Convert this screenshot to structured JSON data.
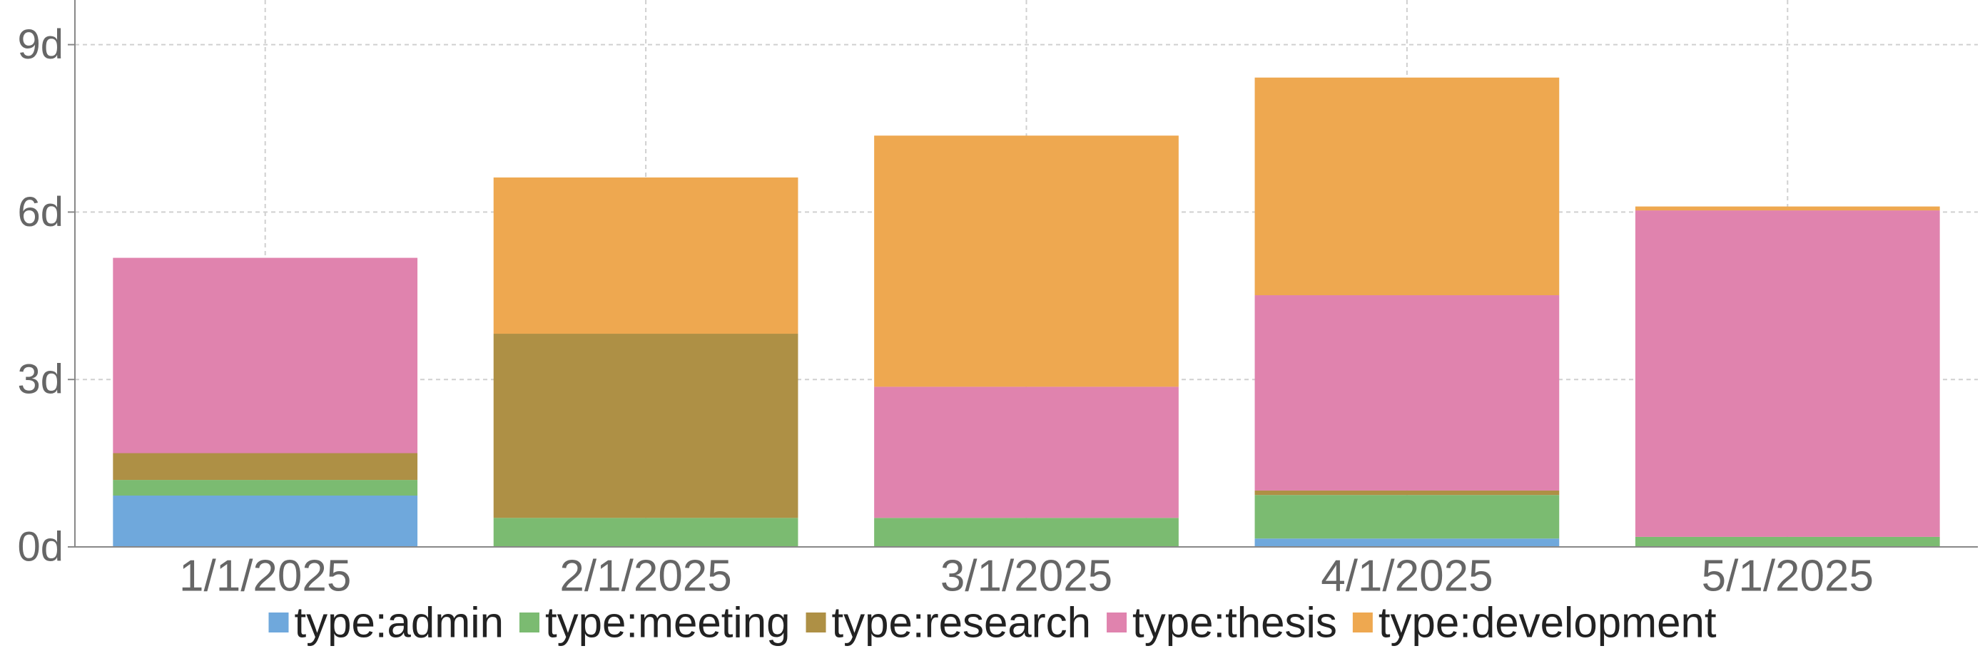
{
  "chart_data": {
    "type": "bar",
    "stacked": true,
    "title": "",
    "xlabel": "",
    "ylabel": "",
    "categories": [
      "1/1/2025",
      "2/1/2025",
      "3/1/2025",
      "4/1/2025",
      "5/1/2025"
    ],
    "y_unit_suffix": "d",
    "ylim": [
      0,
      9.8
    ],
    "yticks": [
      0,
      3,
      6,
      9
    ],
    "ytick_labels": [
      "0d",
      "3d",
      "6d",
      "9d"
    ],
    "grid": true,
    "legend_position": "bottom",
    "series": [
      {
        "name": "type:admin",
        "color": "#6fa8dc",
        "values": [
          0.92,
          0,
          0,
          0.15,
          0
        ]
      },
      {
        "name": "type:meeting",
        "color": "#7bbb71",
        "values": [
          0.28,
          0.52,
          0.52,
          0.78,
          0.18
        ]
      },
      {
        "name": "type:research",
        "color": "#ae9045",
        "values": [
          0.48,
          3.3,
          0,
          0.08,
          0
        ]
      },
      {
        "name": "type:thesis",
        "color": "#e083ae",
        "values": [
          3.5,
          0,
          2.35,
          3.5,
          5.85
        ]
      },
      {
        "name": "type:development",
        "color": "#eea850",
        "values": [
          0,
          2.8,
          4.5,
          3.9,
          0.07
        ]
      }
    ]
  }
}
